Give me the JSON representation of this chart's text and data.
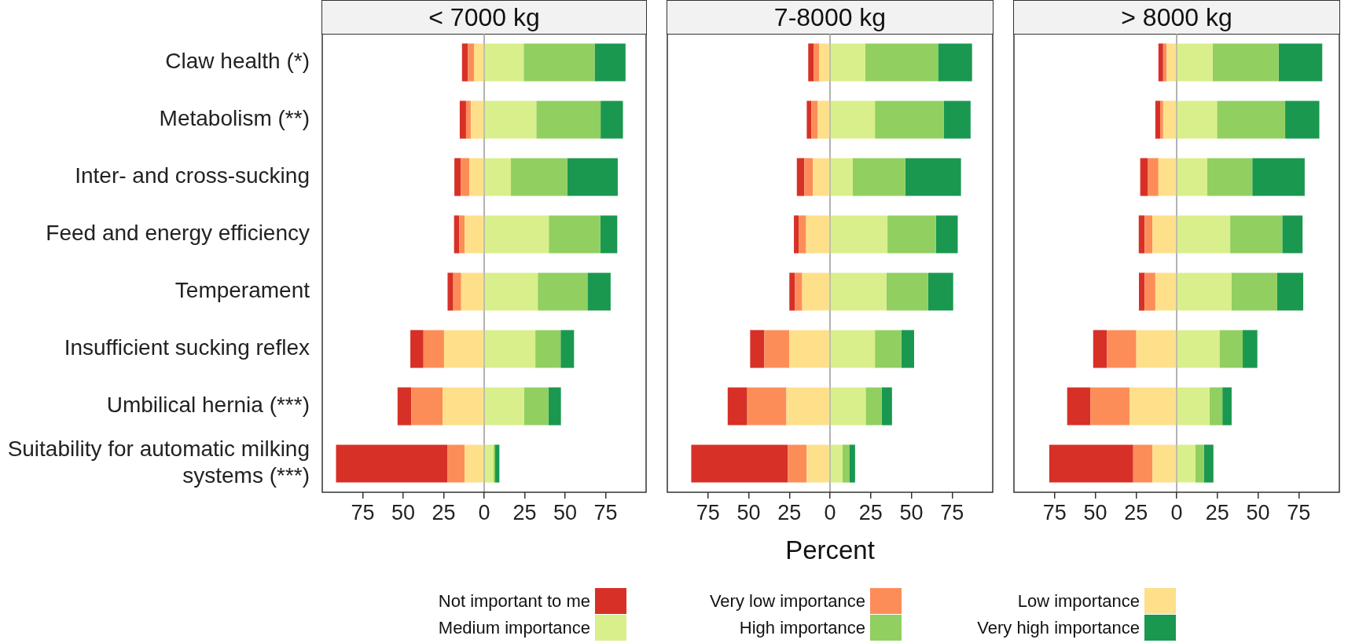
{
  "chart_data": [
    {
      "type": "bar",
      "title": "< 7000 kg",
      "orientation": "horizontal",
      "stacked": true,
      "xlim": [
        -100,
        100
      ],
      "legend": "bottom",
      "xticks": [
        {
          "value": -75,
          "label": "75"
        },
        {
          "value": -50,
          "label": "50"
        },
        {
          "value": -25,
          "label": "25"
        },
        0,
        25,
        50,
        75
      ],
      "categories": [
        "Claw health (*)",
        "Metabolism (**)",
        "Inter- and cross-sucking",
        "Feed and energy efficiency",
        "Temperament",
        "Insufficient sucking reflex",
        "Umbilical hernia (***)",
        "Suitability for automatic milking systems (***)"
      ],
      "ref_lines": [
        {
          "axis": "x",
          "value": 0,
          "color": "#999999"
        }
      ],
      "series": [
        {
          "name": "Low importance",
          "color": "#fee08b",
          "values": [
            -6.3,
            -8.3,
            -9.2,
            -12.1,
            -14.2,
            -24.8,
            -25.7,
            -12.1
          ]
        },
        {
          "name": "Very low importance",
          "color": "#fc8d59",
          "values": [
            -3.7,
            -2.9,
            -5.3,
            -3.3,
            -4.9,
            -12.7,
            -19.3,
            -10.7
          ]
        },
        {
          "name": "Not important to me",
          "color": "#d73027",
          "values": [
            -3.7,
            -3.9,
            -3.9,
            -3.2,
            -3.5,
            -8.1,
            -8.5,
            -68.7
          ]
        },
        {
          "name": "Medium importance",
          "color": "#d9ef8b",
          "values": [
            24.4,
            32.2,
            16.5,
            39.9,
            33.1,
            31.6,
            24.6,
            5.7
          ]
        },
        {
          "name": "High importance",
          "color": "#91cf60",
          "values": [
            43.8,
            39.7,
            34.8,
            31.8,
            30.7,
            15.6,
            15.1,
            1.1
          ]
        },
        {
          "name": "Very high importance",
          "color": "#1a9850",
          "values": [
            19.1,
            13.8,
            31.2,
            10.5,
            14.3,
            8.3,
            7.7,
            2.6
          ]
        }
      ]
    },
    {
      "type": "bar",
      "title": "7-8000 kg",
      "orientation": "horizontal",
      "stacked": true,
      "xlim": [
        -100,
        100
      ],
      "xlabel": "Percent",
      "tick_labels": "x",
      "xticks": [
        {
          "value": -75,
          "label": "75"
        },
        {
          "value": -50,
          "label": "50"
        },
        {
          "value": -25,
          "label": "25"
        },
        0,
        25,
        50,
        75
      ],
      "categories": [
        null,
        null,
        null,
        null,
        null,
        null,
        null,
        null
      ],
      "ref_lines": [
        {
          "axis": "x",
          "value": 0,
          "color": "#999999"
        }
      ],
      "series": [
        {
          "color": "#fee08b",
          "values": [
            -6.6,
            -7.5,
            -10.5,
            -14.7,
            -17.1,
            -25.0,
            -26.8,
            -14.3
          ]
        },
        {
          "color": "#fc8d59",
          "values": [
            -3.5,
            -3.9,
            -5.3,
            -4.6,
            -4.6,
            -15.4,
            -24.1,
            -11.6
          ]
        },
        {
          "color": "#d73027",
          "values": [
            -3.3,
            -2.9,
            -4.6,
            -2.9,
            -3.3,
            -8.7,
            -12.0,
            -59.4
          ]
        },
        {
          "color": "#d9ef8b",
          "values": [
            21.7,
            27.6,
            14.0,
            35.3,
            34.6,
            27.6,
            21.9,
            7.7
          ]
        },
        {
          "color": "#91cf60",
          "values": [
            44.7,
            42.4,
            32.3,
            29.8,
            25.7,
            16.2,
            9.9,
            4.1
          ]
        },
        {
          "color": "#1a9850",
          "values": [
            20.9,
            16.4,
            34.2,
            13.4,
            15.4,
            7.9,
            6.3,
            3.6
          ]
        }
      ]
    },
    {
      "type": "bar",
      "title": "> 8000 kg",
      "orientation": "horizontal",
      "stacked": true,
      "xlim": [
        -100,
        100
      ],
      "tick_labels": "x",
      "xticks": [
        {
          "value": -75,
          "label": "75"
        },
        {
          "value": -50,
          "label": "50"
        },
        {
          "value": -25,
          "label": "25"
        },
        0,
        25,
        50,
        75
      ],
      "categories": [
        null,
        null,
        null,
        null,
        null,
        null,
        null,
        null
      ],
      "ref_lines": [
        {
          "axis": "x",
          "value": 0,
          "color": "#999999"
        }
      ],
      "series": [
        {
          "color": "#fee08b",
          "values": [
            -6.1,
            -8.3,
            -11.2,
            -14.9,
            -13.1,
            -24.8,
            -29.0,
            -14.9
          ]
        },
        {
          "color": "#fc8d59",
          "values": [
            -2.2,
            -1.8,
            -6.4,
            -4.8,
            -6.6,
            -18.0,
            -24.1,
            -11.8
          ]
        },
        {
          "color": "#d73027",
          "values": [
            -2.9,
            -3.0,
            -4.8,
            -3.6,
            -3.5,
            -8.5,
            -14.2,
            -51.6
          ]
        },
        {
          "color": "#d9ef8b",
          "values": [
            22.1,
            24.8,
            18.8,
            32.9,
            33.6,
            26.3,
            20.2,
            11.6
          ]
        },
        {
          "color": "#91cf60",
          "values": [
            40.6,
            41.9,
            27.7,
            32.0,
            28.2,
            14.3,
            7.9,
            5.1
          ]
        },
        {
          "color": "#1a9850",
          "values": [
            26.8,
            21.0,
            32.2,
            12.5,
            16.0,
            9.0,
            5.7,
            5.9
          ]
        }
      ]
    }
  ]
}
